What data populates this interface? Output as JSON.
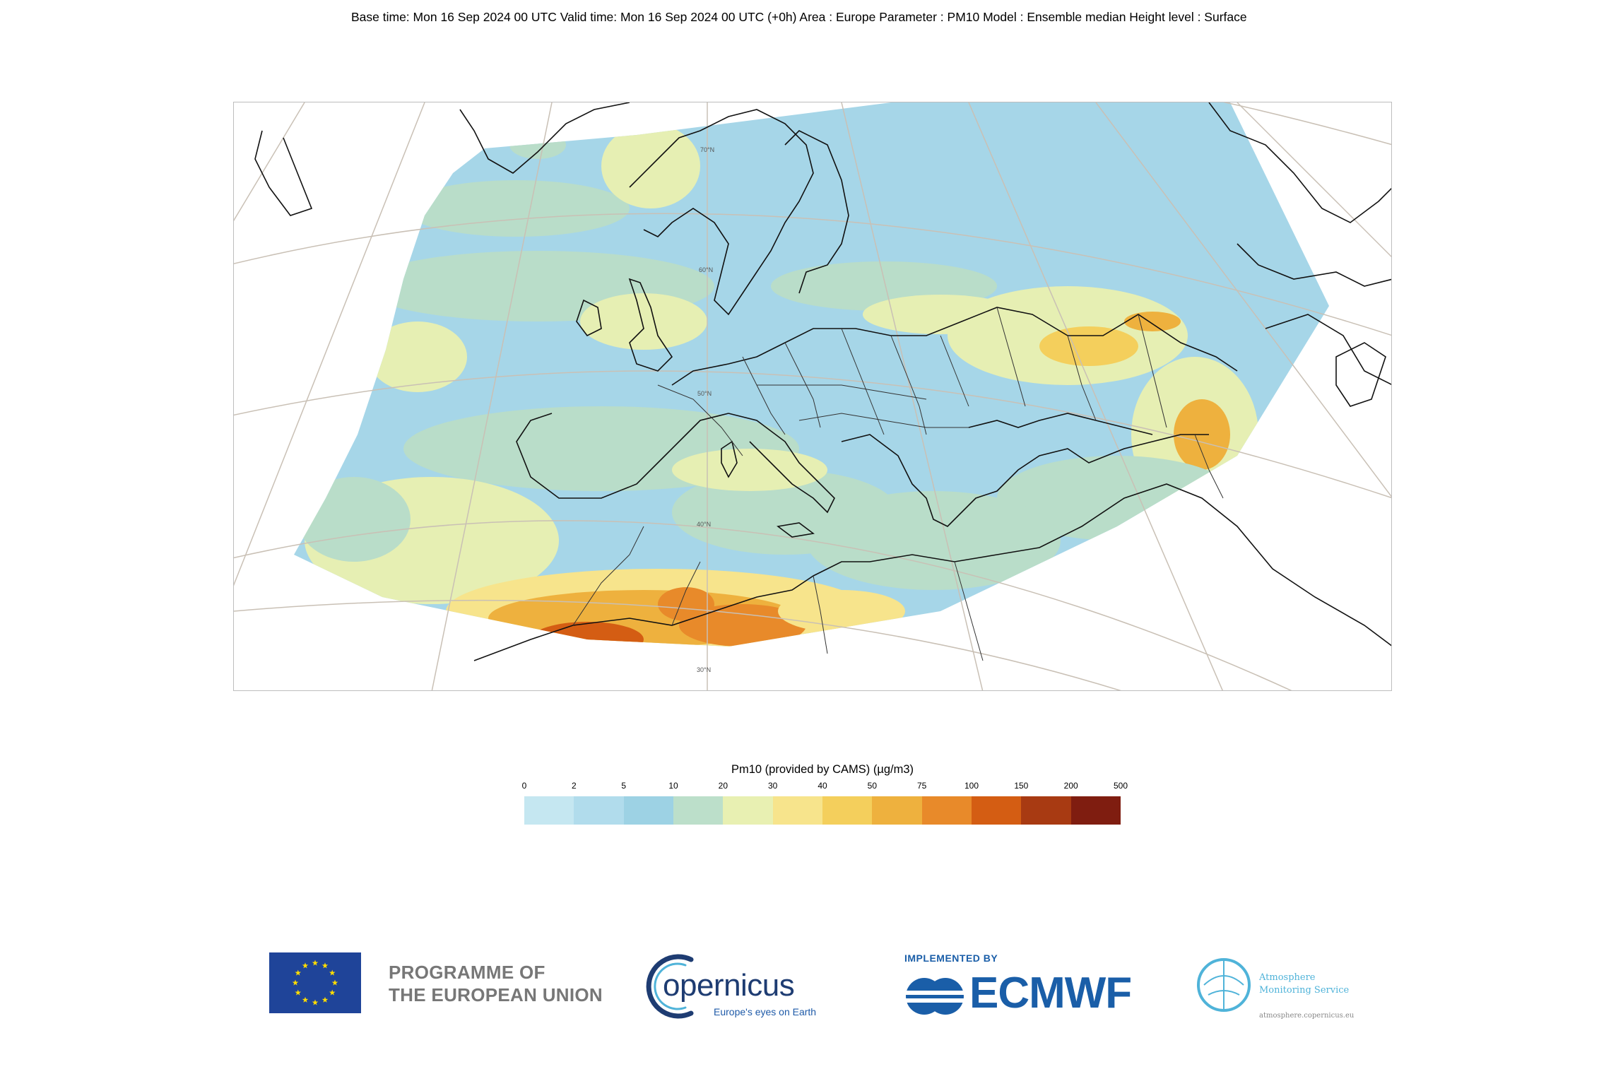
{
  "header": {
    "text": "Base time: Mon 16 Sep 2024 00 UTC Valid time: Mon 16 Sep 2024 00 UTC (+0h) Area : Europe Parameter : PM10 Model : Ensemble median Height level : Surface"
  },
  "map": {
    "lat_labels": [
      "70°N",
      "60°N",
      "50°N",
      "40°N",
      "30°N"
    ]
  },
  "legend": {
    "title": "Pm10 (provided by CAMS) (µg/m3)",
    "ticks": [
      "0",
      "2",
      "5",
      "10",
      "20",
      "30",
      "40",
      "50",
      "75",
      "100",
      "150",
      "200",
      "500"
    ],
    "colors": [
      "#c5e7f1",
      "#b1dcec",
      "#9dd2e4",
      "#bcdfca",
      "#e8f0b2",
      "#f7e48c",
      "#f4cf5c",
      "#eeb13e",
      "#e88a2a",
      "#d45d13",
      "#a83a12",
      "#7f1d10"
    ]
  },
  "logos": {
    "eu_text_line1": "PROGRAMME OF",
    "eu_text_line2": "THE EUROPEAN UNION",
    "copernicus_word": "opernicus",
    "copernicus_tagline": "Europe's eyes on Earth",
    "ecmwf_implemented": "IMPLEMENTED BY",
    "ecmwf_word": "ECMWF",
    "cams_line1": "Atmosphere",
    "cams_line2": "Monitoring Service",
    "cams_url": "atmosphere.copernicus.eu"
  }
}
